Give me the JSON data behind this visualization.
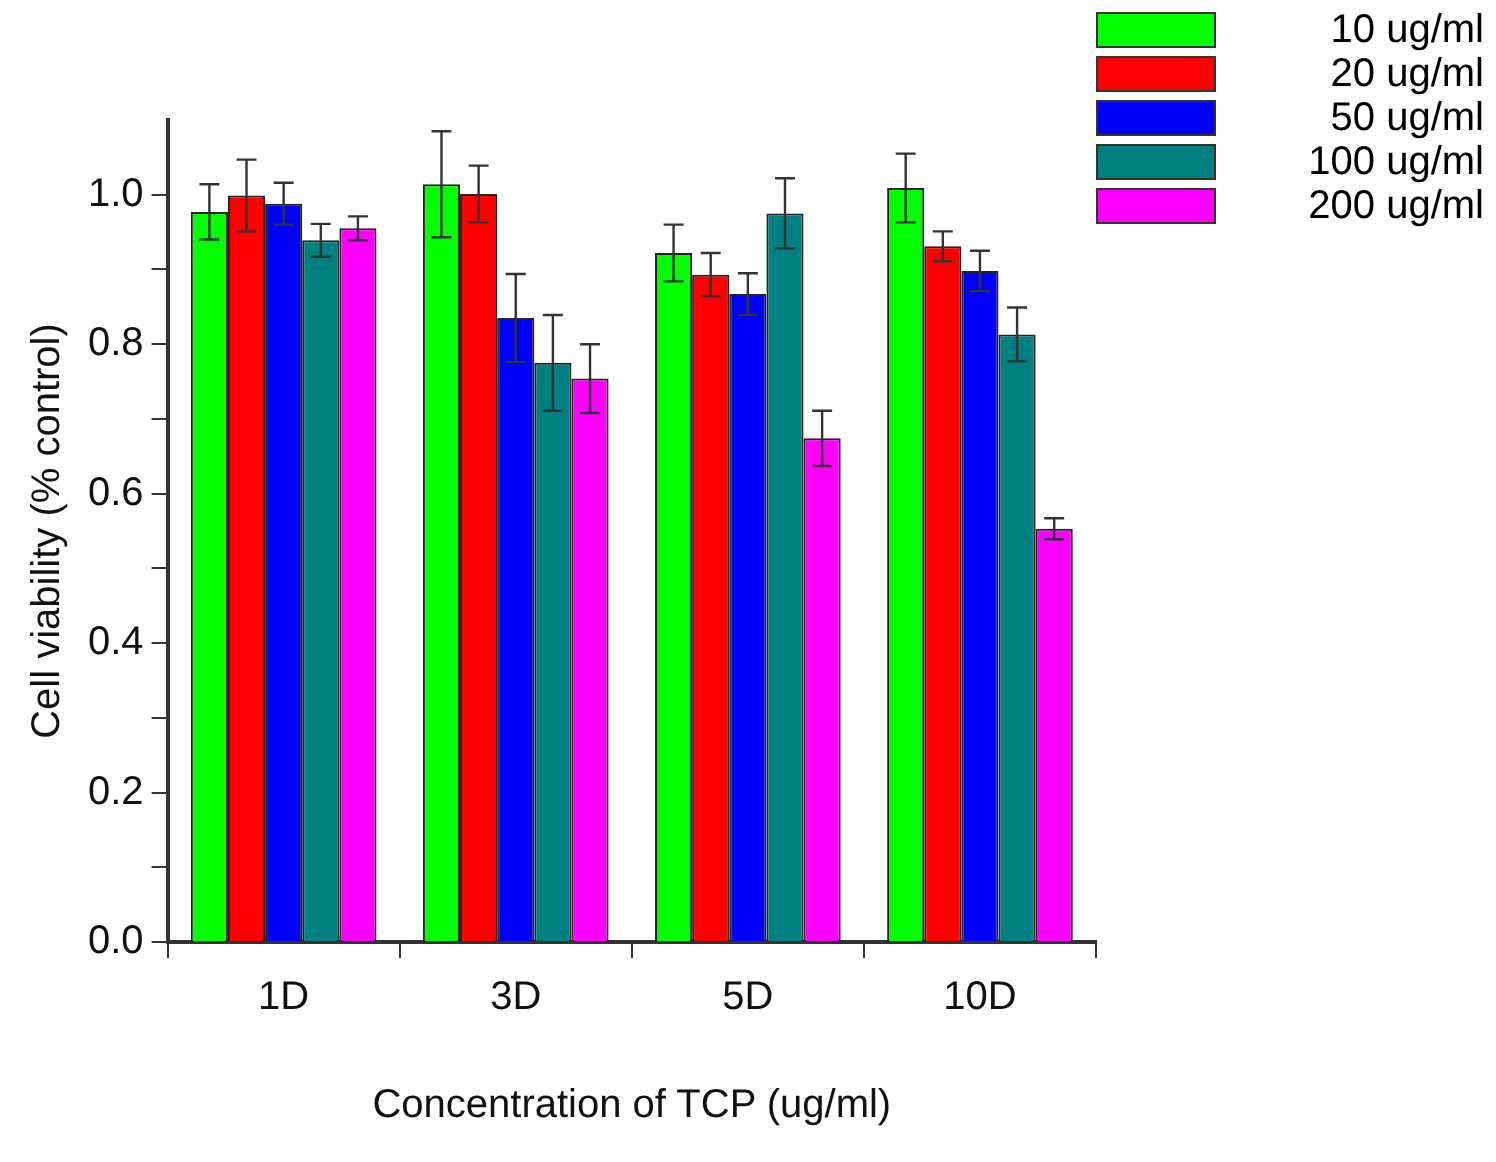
{
  "chart_data": {
    "type": "bar",
    "xlabel": "Concentration of TCP (ug/ml)",
    "ylabel": "Cell viability (% control)",
    "categories": [
      "1D",
      "3D",
      "5D",
      "10D"
    ],
    "series": [
      {
        "name": "10 ug/ml",
        "color": "#00ff00",
        "values": [
          0.977,
          1.014,
          0.922,
          1.009
        ],
        "errors": [
          0.037,
          0.071,
          0.038,
          0.046
        ]
      },
      {
        "name": "20 ug/ml",
        "color": "#ff0000",
        "values": [
          0.999,
          1.001,
          0.893,
          0.931
        ],
        "errors": [
          0.048,
          0.038,
          0.029,
          0.02
        ]
      },
      {
        "name": "50 ug/ml",
        "color": "#0000ff",
        "values": [
          0.988,
          0.835,
          0.867,
          0.898
        ],
        "errors": [
          0.028,
          0.059,
          0.028,
          0.027
        ]
      },
      {
        "name": "100 ug/ml",
        "color": "#008080",
        "values": [
          0.939,
          0.775,
          0.975,
          0.813
        ],
        "errors": [
          0.022,
          0.064,
          0.047,
          0.036
        ]
      },
      {
        "name": "200 ug/ml",
        "color": "#ff00ff",
        "values": [
          0.955,
          0.754,
          0.674,
          0.553
        ],
        "errors": [
          0.016,
          0.046,
          0.037,
          0.014
        ]
      }
    ],
    "ylim": [
      0,
      1.1
    ],
    "yticks": [
      {
        "value": 0,
        "label": "0.0"
      },
      {
        "value": 0.1,
        "label": null
      },
      {
        "value": 0.2,
        "label": "0.2"
      },
      {
        "value": 0.3,
        "label": null
      },
      {
        "value": 0.4,
        "label": "0.4"
      },
      {
        "value": 0.5,
        "label": null
      },
      {
        "value": 0.6,
        "label": "0.6"
      },
      {
        "value": 0.7,
        "label": null
      },
      {
        "value": 0.8,
        "label": "0.8"
      },
      {
        "value": 0.9,
        "label": null
      },
      {
        "value": 1,
        "label": "1.0"
      }
    ],
    "grid": false,
    "legend": "top right"
  }
}
